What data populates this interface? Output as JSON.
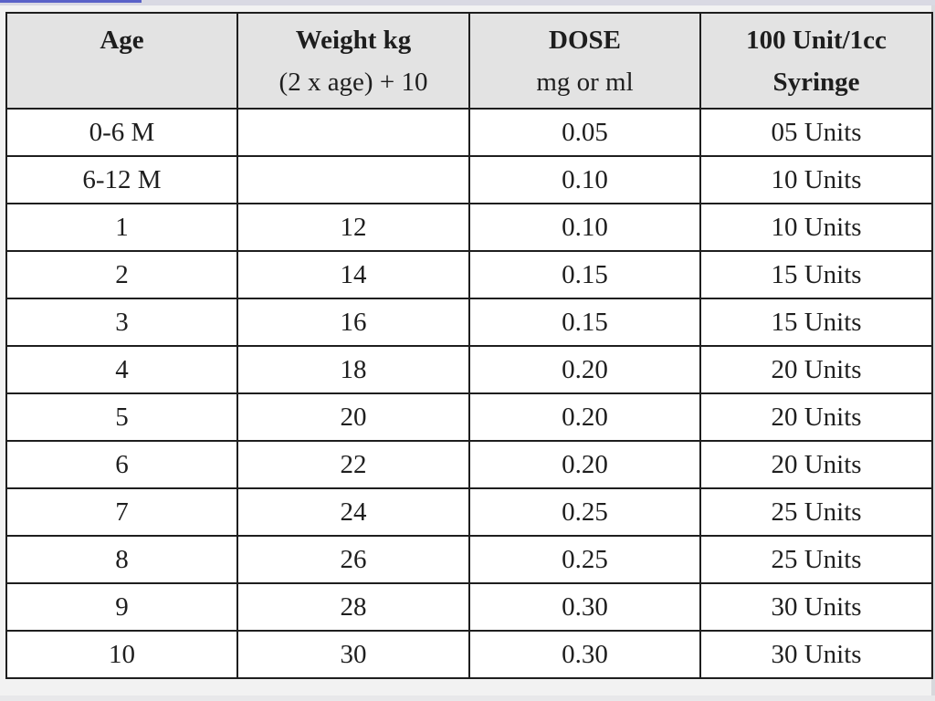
{
  "table": {
    "headers": [
      {
        "main": "Age",
        "sub": "",
        "sub_bold": false
      },
      {
        "main": "Weight kg",
        "sub": "(2 x age) + 10",
        "sub_bold": false
      },
      {
        "main": "DOSE",
        "sub": "mg or ml",
        "sub_bold": false
      },
      {
        "main": "100 Unit/1cc",
        "sub": "Syringe",
        "sub_bold": true
      }
    ],
    "rows": [
      [
        "0-6 M",
        "",
        "0.05",
        "05 Units"
      ],
      [
        "6-12 M",
        "",
        "0.10",
        "10 Units"
      ],
      [
        "1",
        "12",
        "0.10",
        "10 Units"
      ],
      [
        "2",
        "14",
        "0.15",
        "15 Units"
      ],
      [
        "3",
        "16",
        "0.15",
        "15 Units"
      ],
      [
        "4",
        "18",
        "0.20",
        "20 Units"
      ],
      [
        "5",
        "20",
        "0.20",
        "20 Units"
      ],
      [
        "6",
        "22",
        "0.20",
        "20 Units"
      ],
      [
        "7",
        "24",
        "0.25",
        "25 Units"
      ],
      [
        "8",
        "26",
        "0.25",
        "25 Units"
      ],
      [
        "9",
        "28",
        "0.30",
        "30 Units"
      ],
      [
        "10",
        "30",
        "0.30",
        "30 Units"
      ]
    ]
  }
}
